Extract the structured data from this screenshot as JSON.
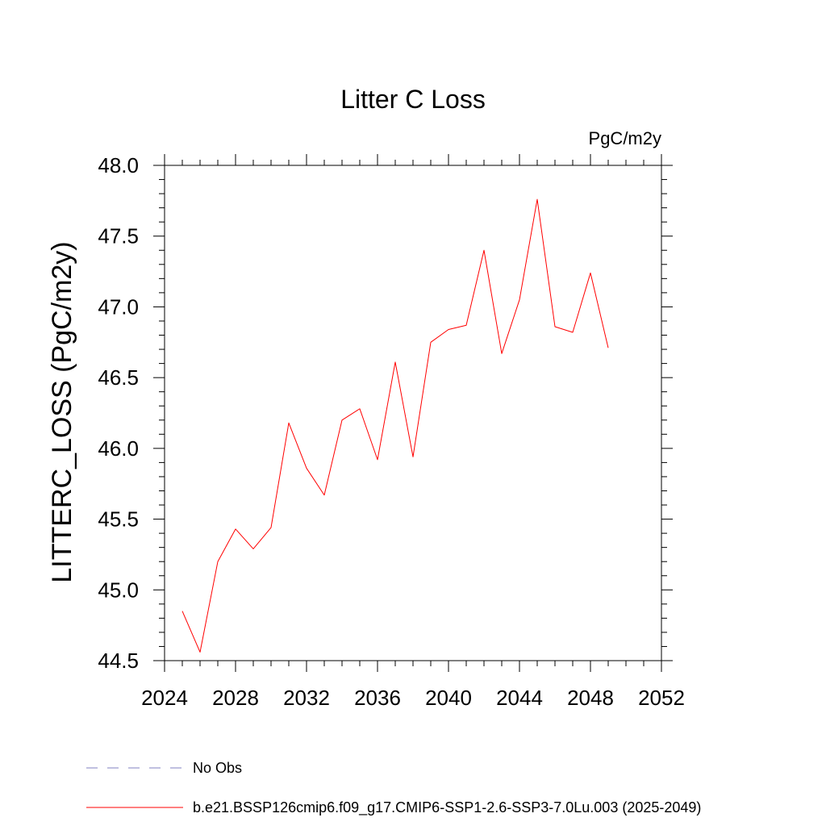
{
  "chart_data": {
    "type": "line",
    "title": "Litter C Loss",
    "units_label": "PgC/m2y",
    "xlabel": "",
    "ylabel": "LITTERC_LOSS  (PgC/m2y)",
    "xlim": [
      2024,
      2052
    ],
    "ylim": [
      44.5,
      48.0
    ],
    "x_ticks": [
      2024,
      2028,
      2032,
      2036,
      2040,
      2044,
      2048,
      2052
    ],
    "x_tick_labels": [
      "2024",
      "2028",
      "2032",
      "2036",
      "2040",
      "2044",
      "2048",
      "2052"
    ],
    "y_ticks": [
      44.5,
      45.0,
      45.5,
      46.0,
      46.5,
      47.0,
      47.5,
      48.0
    ],
    "y_tick_labels": [
      "44.5",
      "45.0",
      "45.5",
      "46.0",
      "46.5",
      "47.0",
      "47.5",
      "48.0"
    ],
    "grid": false,
    "legend_position": "bottom-left",
    "series": [
      {
        "name": "b.e21.BSSP126cmip6.f09_g17.CMIP6-SSP1-2.6-SSP3-7.0Lu.003 (2025-2049)",
        "color": "#ff0000",
        "style": "solid",
        "x": [
          2025,
          2026,
          2027,
          2028,
          2029,
          2030,
          2031,
          2032,
          2033,
          2034,
          2035,
          2036,
          2037,
          2038,
          2039,
          2040,
          2041,
          2042,
          2043,
          2044,
          2045,
          2046,
          2047,
          2048,
          2049
        ],
        "y": [
          44.85,
          44.56,
          45.2,
          45.43,
          45.29,
          45.44,
          46.18,
          45.86,
          45.67,
          46.2,
          46.28,
          45.92,
          46.61,
          45.94,
          46.75,
          46.84,
          46.87,
          47.4,
          46.67,
          47.05,
          47.76,
          46.86,
          46.82,
          47.24,
          46.71
        ]
      }
    ],
    "legend": [
      {
        "label": "No Obs",
        "color": "#8080c0",
        "style": "dashed"
      },
      {
        "label": "b.e21.BSSP126cmip6.f09_g17.CMIP6-SSP1-2.6-SSP3-7.0Lu.003 (2025-2049)",
        "color": "#ff0000",
        "style": "solid"
      }
    ]
  }
}
